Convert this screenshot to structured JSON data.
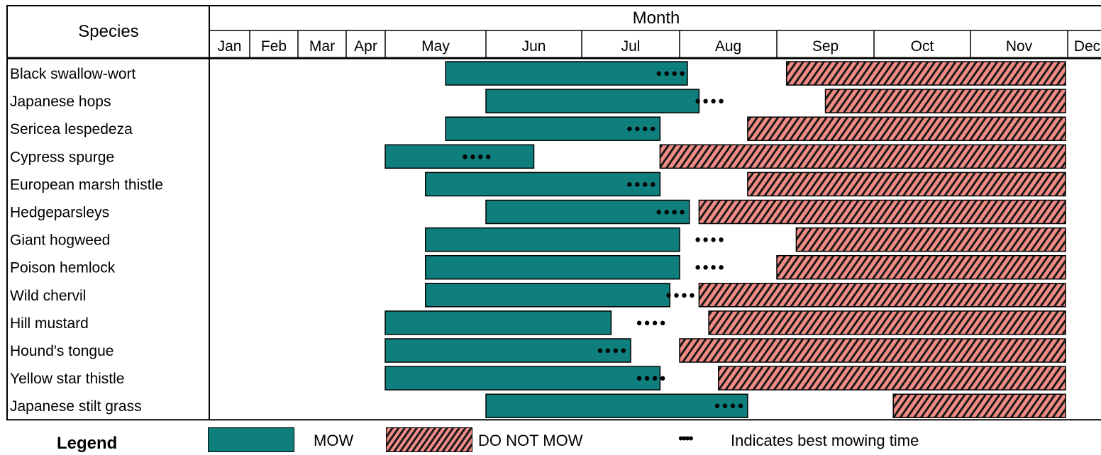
{
  "chart_data": {
    "type": "gantt",
    "header": {
      "species_label": "Species",
      "month_label": "Month"
    },
    "months": [
      "Jan",
      "Feb",
      "Mar",
      "Apr",
      "May",
      "Jun",
      "Jul",
      "Aug",
      "Sep",
      "Oct",
      "Nov",
      "Dec"
    ],
    "rows": [
      {
        "species": "Black swallow-wort",
        "mow": [
          4.6,
          7.08
        ],
        "best": 6.9,
        "no_mow": [
          8.1,
          12.0
        ]
      },
      {
        "species": "Japanese hops",
        "mow": [
          5.0,
          7.2
        ],
        "best": 7.3,
        "no_mow": [
          8.5,
          12.0
        ]
      },
      {
        "species": "Sericea lespedeza",
        "mow": [
          4.6,
          6.8
        ],
        "best": 6.6,
        "no_mow": [
          7.7,
          12.0
        ]
      },
      {
        "species": "Cypress spurge",
        "mow": [
          4.0,
          5.5
        ],
        "best": 4.9,
        "no_mow": [
          6.8,
          12.0
        ]
      },
      {
        "species": "European marsh thistle",
        "mow": [
          4.4,
          6.8
        ],
        "best": 6.6,
        "no_mow": [
          7.7,
          12.0
        ]
      },
      {
        "species": "Hedgeparsleys",
        "mow": [
          5.0,
          7.1
        ],
        "best": 6.9,
        "no_mow": [
          7.2,
          12.0
        ]
      },
      {
        "species": "Giant hogweed",
        "mow": [
          4.4,
          7.0
        ],
        "best": 7.3,
        "no_mow": [
          8.2,
          12.0
        ]
      },
      {
        "species": "Poison hemlock",
        "mow": [
          4.4,
          7.0
        ],
        "best": 7.3,
        "no_mow": [
          8.0,
          12.0
        ]
      },
      {
        "species": "Wild chervil",
        "mow": [
          4.4,
          6.9
        ],
        "best": 7.0,
        "no_mow": [
          7.2,
          12.0
        ]
      },
      {
        "species": "Hill mustard",
        "mow": [
          4.0,
          6.3
        ],
        "best": 6.7,
        "no_mow": [
          7.3,
          12.0
        ]
      },
      {
        "species": "Hound's tongue",
        "mow": [
          4.0,
          6.5
        ],
        "best": 6.3,
        "no_mow": [
          7.0,
          12.0
        ]
      },
      {
        "species": "Yellow star thistle",
        "mow": [
          4.0,
          6.8
        ],
        "best": 6.7,
        "no_mow": [
          7.4,
          12.0
        ]
      },
      {
        "species": "Japanese stilt grass",
        "mow": [
          5.0,
          7.7
        ],
        "best": 7.5,
        "no_mow": [
          9.2,
          12.0
        ]
      }
    ],
    "best_marker": "••••",
    "colors": {
      "mow": "#0e7f7c",
      "no_mow": "#f28b85",
      "hatch": "#1a1a1a"
    }
  },
  "legend": {
    "title": "Legend",
    "mow_label": "MOW",
    "no_mow_label": "DO NOT MOW",
    "dots": "••••",
    "dots_label": "Indicates best mowing time"
  }
}
